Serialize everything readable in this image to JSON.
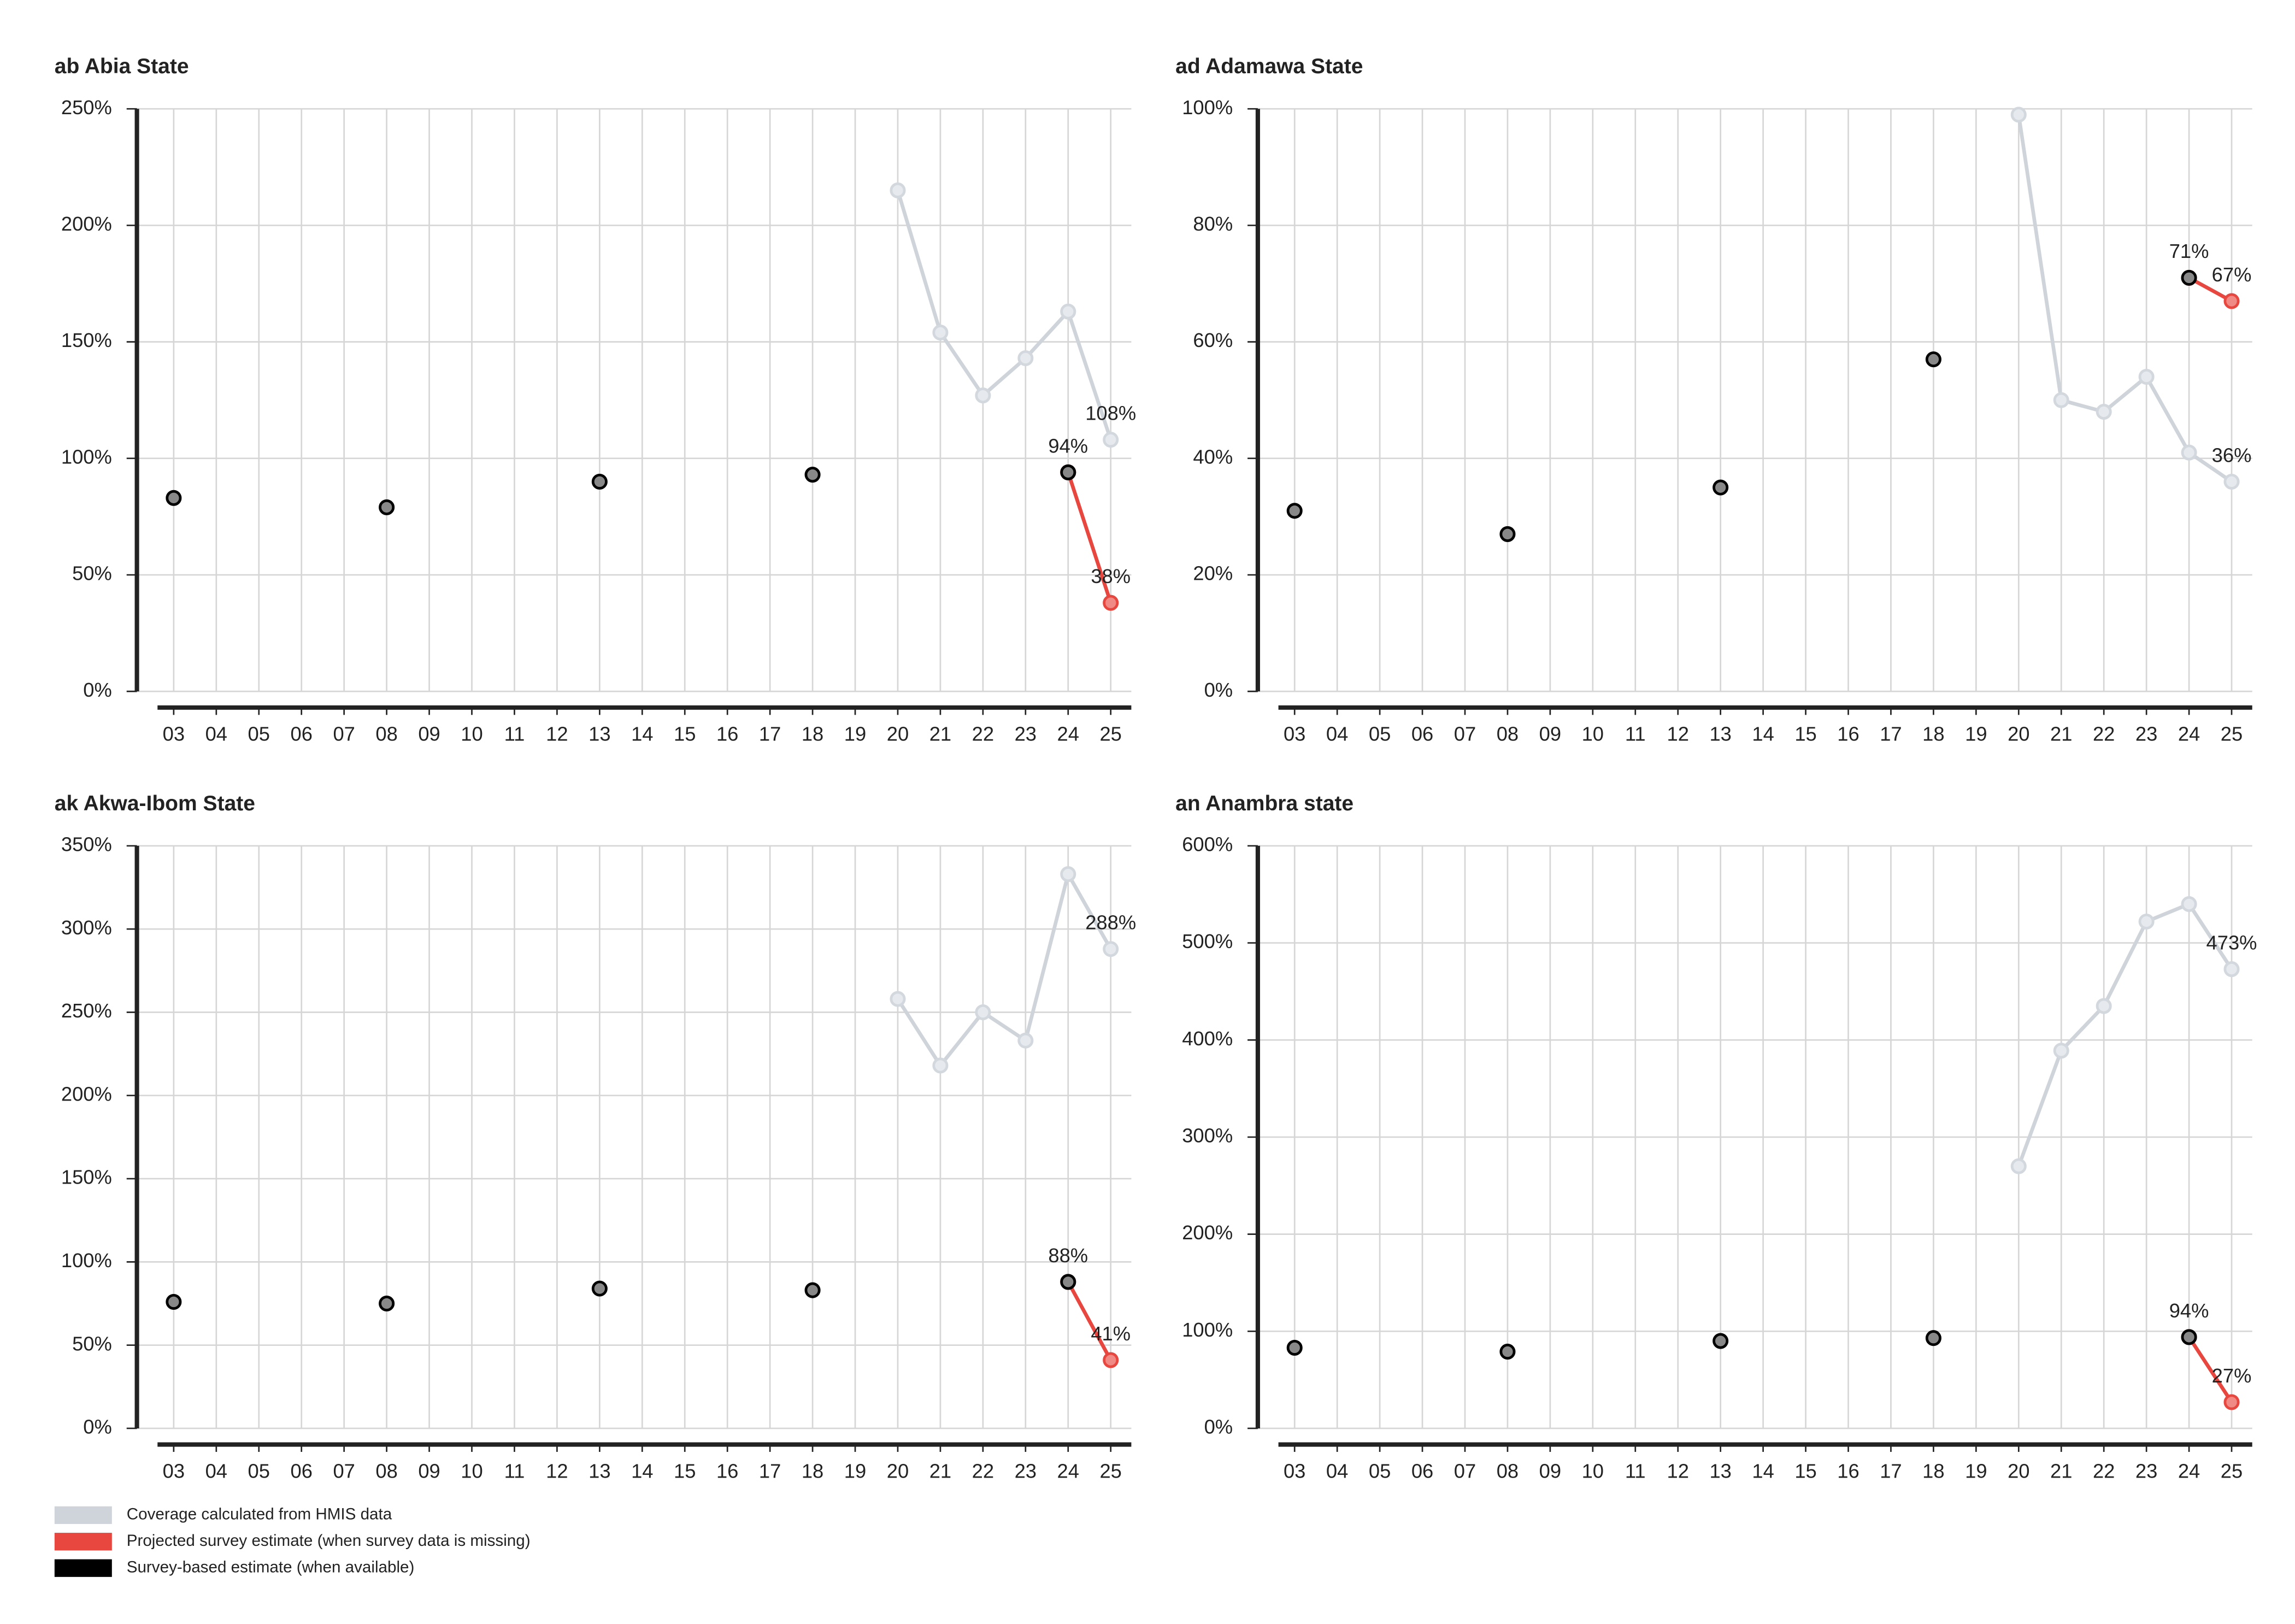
{
  "chart_data": [
    {
      "type": "line",
      "title": "ab Abia State",
      "categories": [
        "03",
        "04",
        "05",
        "06",
        "07",
        "08",
        "09",
        "10",
        "11",
        "12",
        "13",
        "14",
        "15",
        "16",
        "17",
        "18",
        "19",
        "20",
        "21",
        "22",
        "23",
        "24",
        "25"
      ],
      "ylim": [
        0,
        250
      ],
      "yticks": [
        {
          "value": 0,
          "label": "0%"
        },
        {
          "value": 50,
          "label": "50%"
        },
        {
          "value": 100,
          "label": "100%"
        },
        {
          "value": 150,
          "label": "150%"
        },
        {
          "value": 200,
          "label": "200%"
        },
        {
          "value": 250,
          "label": "250%"
        }
      ],
      "grid": true,
      "series": [
        {
          "name": "Coverage calculated from HMIS data",
          "color": "#cfd4da",
          "marker_color": "#e6e9ed",
          "values": [
            null,
            null,
            null,
            null,
            null,
            null,
            null,
            null,
            null,
            null,
            null,
            null,
            null,
            null,
            null,
            null,
            null,
            215,
            154,
            127,
            143,
            163,
            108
          ],
          "value_labels": [
            null,
            null,
            null,
            null,
            null,
            null,
            null,
            null,
            null,
            null,
            null,
            null,
            null,
            null,
            null,
            null,
            null,
            null,
            null,
            null,
            null,
            null,
            "108%"
          ]
        },
        {
          "name": "Projected survey estimate (when survey data is missing)",
          "color": "#e8473f",
          "marker_color": "#f08a84",
          "values": [
            null,
            null,
            null,
            null,
            null,
            null,
            null,
            null,
            null,
            null,
            null,
            null,
            null,
            null,
            null,
            null,
            null,
            null,
            null,
            null,
            null,
            94,
            38
          ],
          "value_labels": [
            null,
            null,
            null,
            null,
            null,
            null,
            null,
            null,
            null,
            null,
            null,
            null,
            null,
            null,
            null,
            null,
            null,
            null,
            null,
            null,
            null,
            null,
            "38%"
          ]
        },
        {
          "name": "Survey-based estimate (when available)",
          "color": "#000000",
          "marker_color": "#888888",
          "values": [
            83,
            null,
            null,
            null,
            null,
            79,
            null,
            null,
            null,
            null,
            90,
            null,
            null,
            null,
            null,
            93,
            null,
            null,
            null,
            null,
            null,
            94,
            null
          ],
          "value_labels": [
            null,
            null,
            null,
            null,
            null,
            null,
            null,
            null,
            null,
            null,
            null,
            null,
            null,
            null,
            null,
            null,
            null,
            null,
            null,
            null,
            null,
            "94%",
            null
          ]
        }
      ]
    },
    {
      "type": "line",
      "title": "ad Adamawa State",
      "categories": [
        "03",
        "04",
        "05",
        "06",
        "07",
        "08",
        "09",
        "10",
        "11",
        "12",
        "13",
        "14",
        "15",
        "16",
        "17",
        "18",
        "19",
        "20",
        "21",
        "22",
        "23",
        "24",
        "25"
      ],
      "ylim": [
        0,
        100
      ],
      "yticks": [
        {
          "value": 0,
          "label": "0%"
        },
        {
          "value": 20,
          "label": "20%"
        },
        {
          "value": 40,
          "label": "40%"
        },
        {
          "value": 60,
          "label": "60%"
        },
        {
          "value": 80,
          "label": "80%"
        },
        {
          "value": 100,
          "label": "100%"
        }
      ],
      "grid": true,
      "series": [
        {
          "name": "Coverage calculated from HMIS data",
          "color": "#cfd4da",
          "marker_color": "#e6e9ed",
          "values": [
            null,
            null,
            null,
            null,
            null,
            null,
            null,
            null,
            null,
            null,
            null,
            null,
            null,
            null,
            null,
            null,
            null,
            99,
            50,
            48,
            54,
            41,
            36
          ],
          "value_labels": [
            null,
            null,
            null,
            null,
            null,
            null,
            null,
            null,
            null,
            null,
            null,
            null,
            null,
            null,
            null,
            null,
            null,
            null,
            null,
            null,
            null,
            null,
            "36%"
          ]
        },
        {
          "name": "Projected survey estimate (when survey data is missing)",
          "color": "#e8473f",
          "marker_color": "#f08a84",
          "values": [
            null,
            null,
            null,
            null,
            null,
            null,
            null,
            null,
            null,
            null,
            null,
            null,
            null,
            null,
            null,
            null,
            null,
            null,
            null,
            null,
            null,
            71,
            67
          ],
          "value_labels": [
            null,
            null,
            null,
            null,
            null,
            null,
            null,
            null,
            null,
            null,
            null,
            null,
            null,
            null,
            null,
            null,
            null,
            null,
            null,
            null,
            null,
            null,
            "67%"
          ]
        },
        {
          "name": "Survey-based estimate (when available)",
          "color": "#000000",
          "marker_color": "#888888",
          "values": [
            31,
            null,
            null,
            null,
            null,
            27,
            null,
            null,
            null,
            null,
            35,
            null,
            null,
            null,
            null,
            57,
            null,
            null,
            null,
            null,
            null,
            71,
            null
          ],
          "value_labels": [
            null,
            null,
            null,
            null,
            null,
            null,
            null,
            null,
            null,
            null,
            null,
            null,
            null,
            null,
            null,
            null,
            null,
            null,
            null,
            null,
            null,
            "71%",
            null
          ]
        }
      ]
    },
    {
      "type": "line",
      "title": "ak Akwa-Ibom State",
      "categories": [
        "03",
        "04",
        "05",
        "06",
        "07",
        "08",
        "09",
        "10",
        "11",
        "12",
        "13",
        "14",
        "15",
        "16",
        "17",
        "18",
        "19",
        "20",
        "21",
        "22",
        "23",
        "24",
        "25"
      ],
      "ylim": [
        0,
        350
      ],
      "yticks": [
        {
          "value": 0,
          "label": "0%"
        },
        {
          "value": 50,
          "label": "50%"
        },
        {
          "value": 100,
          "label": "100%"
        },
        {
          "value": 150,
          "label": "150%"
        },
        {
          "value": 200,
          "label": "200%"
        },
        {
          "value": 250,
          "label": "250%"
        },
        {
          "value": 300,
          "label": "300%"
        },
        {
          "value": 350,
          "label": "350%"
        }
      ],
      "grid": true,
      "series": [
        {
          "name": "Coverage calculated from HMIS data",
          "color": "#cfd4da",
          "marker_color": "#e6e9ed",
          "values": [
            null,
            null,
            null,
            null,
            null,
            null,
            null,
            null,
            null,
            null,
            null,
            null,
            null,
            null,
            null,
            null,
            null,
            258,
            218,
            250,
            233,
            333,
            288
          ],
          "value_labels": [
            null,
            null,
            null,
            null,
            null,
            null,
            null,
            null,
            null,
            null,
            null,
            null,
            null,
            null,
            null,
            null,
            null,
            null,
            null,
            null,
            null,
            null,
            "288%"
          ]
        },
        {
          "name": "Projected survey estimate (when survey data is missing)",
          "color": "#e8473f",
          "marker_color": "#f08a84",
          "values": [
            null,
            null,
            null,
            null,
            null,
            null,
            null,
            null,
            null,
            null,
            null,
            null,
            null,
            null,
            null,
            null,
            null,
            null,
            null,
            null,
            null,
            88,
            41
          ],
          "value_labels": [
            null,
            null,
            null,
            null,
            null,
            null,
            null,
            null,
            null,
            null,
            null,
            null,
            null,
            null,
            null,
            null,
            null,
            null,
            null,
            null,
            null,
            null,
            "41%"
          ]
        },
        {
          "name": "Survey-based estimate (when available)",
          "color": "#000000",
          "marker_color": "#888888",
          "values": [
            76,
            null,
            null,
            null,
            null,
            75,
            null,
            null,
            null,
            null,
            84,
            null,
            null,
            null,
            null,
            83,
            null,
            null,
            null,
            null,
            null,
            88,
            null
          ],
          "value_labels": [
            null,
            null,
            null,
            null,
            null,
            null,
            null,
            null,
            null,
            null,
            null,
            null,
            null,
            null,
            null,
            null,
            null,
            null,
            null,
            null,
            null,
            "88%",
            null
          ]
        }
      ]
    },
    {
      "type": "line",
      "title": "an Anambra state",
      "categories": [
        "03",
        "04",
        "05",
        "06",
        "07",
        "08",
        "09",
        "10",
        "11",
        "12",
        "13",
        "14",
        "15",
        "16",
        "17",
        "18",
        "19",
        "20",
        "21",
        "22",
        "23",
        "24",
        "25"
      ],
      "ylim": [
        0,
        600
      ],
      "yticks": [
        {
          "value": 0,
          "label": "0%"
        },
        {
          "value": 100,
          "label": "100%"
        },
        {
          "value": 200,
          "label": "200%"
        },
        {
          "value": 300,
          "label": "300%"
        },
        {
          "value": 400,
          "label": "400%"
        },
        {
          "value": 500,
          "label": "500%"
        },
        {
          "value": 600,
          "label": "600%"
        }
      ],
      "grid": true,
      "series": [
        {
          "name": "Coverage calculated from HMIS data",
          "color": "#cfd4da",
          "marker_color": "#e6e9ed",
          "values": [
            null,
            null,
            null,
            null,
            null,
            null,
            null,
            null,
            null,
            null,
            null,
            null,
            null,
            null,
            null,
            null,
            null,
            270,
            389,
            435,
            522,
            540,
            473
          ],
          "value_labels": [
            null,
            null,
            null,
            null,
            null,
            null,
            null,
            null,
            null,
            null,
            null,
            null,
            null,
            null,
            null,
            null,
            null,
            null,
            null,
            null,
            null,
            null,
            "473%"
          ]
        },
        {
          "name": "Projected survey estimate (when survey data is missing)",
          "color": "#e8473f",
          "marker_color": "#f08a84",
          "values": [
            null,
            null,
            null,
            null,
            null,
            null,
            null,
            null,
            null,
            null,
            null,
            null,
            null,
            null,
            null,
            null,
            null,
            null,
            null,
            null,
            null,
            94,
            27
          ],
          "value_labels": [
            null,
            null,
            null,
            null,
            null,
            null,
            null,
            null,
            null,
            null,
            null,
            null,
            null,
            null,
            null,
            null,
            null,
            null,
            null,
            null,
            null,
            null,
            "27%"
          ]
        },
        {
          "name": "Survey-based estimate (when available)",
          "color": "#000000",
          "marker_color": "#888888",
          "values": [
            83,
            null,
            null,
            null,
            null,
            79,
            null,
            null,
            null,
            null,
            90,
            null,
            null,
            null,
            null,
            93,
            null,
            null,
            null,
            null,
            null,
            94,
            null
          ],
          "value_labels": [
            null,
            null,
            null,
            null,
            null,
            null,
            null,
            null,
            null,
            null,
            null,
            null,
            null,
            null,
            null,
            null,
            null,
            null,
            null,
            null,
            null,
            "94%",
            null
          ]
        }
      ]
    }
  ]
}
